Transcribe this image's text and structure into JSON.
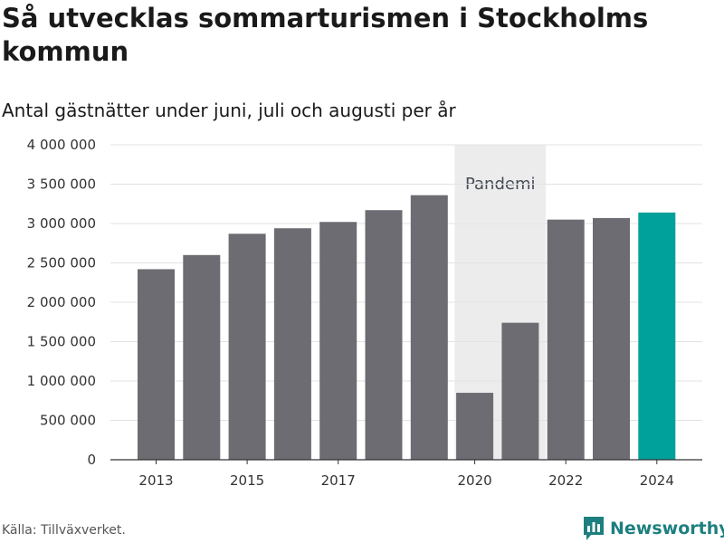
{
  "header": {
    "title": "Så utvecklas sommarturismen i Stockholms kommun",
    "subtitle": "Antal gästnätter under juni, juli och augusti per år"
  },
  "footer": {
    "source": "Källa: Tillväxverket.",
    "brand": "Newsworthy"
  },
  "colors": {
    "bar": "#6d6c72",
    "highlight": "#00a19a",
    "band": "#ececec",
    "brand": "#1d7f80"
  },
  "chart_data": {
    "type": "bar",
    "categories": [
      2013,
      2014,
      2015,
      2016,
      2017,
      2018,
      2019,
      2020,
      2021,
      2022,
      2023,
      2024
    ],
    "values": [
      2420000,
      2600000,
      2870000,
      2940000,
      3020000,
      3170000,
      3360000,
      850000,
      1740000,
      3050000,
      3070000,
      3140000
    ],
    "highlight_category": 2024,
    "ylim": [
      0,
      4000000
    ],
    "yticks": [
      0,
      500000,
      1000000,
      1500000,
      2000000,
      2500000,
      3000000,
      3500000,
      4000000
    ],
    "ytick_labels": [
      "0",
      "500 000",
      "1 000 000",
      "1 500 000",
      "2 000 000",
      "2 500 000",
      "3 000 000",
      "3 500 000",
      "4 000 000"
    ],
    "xtick_labels": [
      "2013",
      "2015",
      "2017",
      "2020",
      "2022",
      "2024"
    ],
    "shaded_band": {
      "from": 2020,
      "to": 2021,
      "label": "Pandemi"
    },
    "grid": true,
    "xlabel": "",
    "ylabel": ""
  }
}
